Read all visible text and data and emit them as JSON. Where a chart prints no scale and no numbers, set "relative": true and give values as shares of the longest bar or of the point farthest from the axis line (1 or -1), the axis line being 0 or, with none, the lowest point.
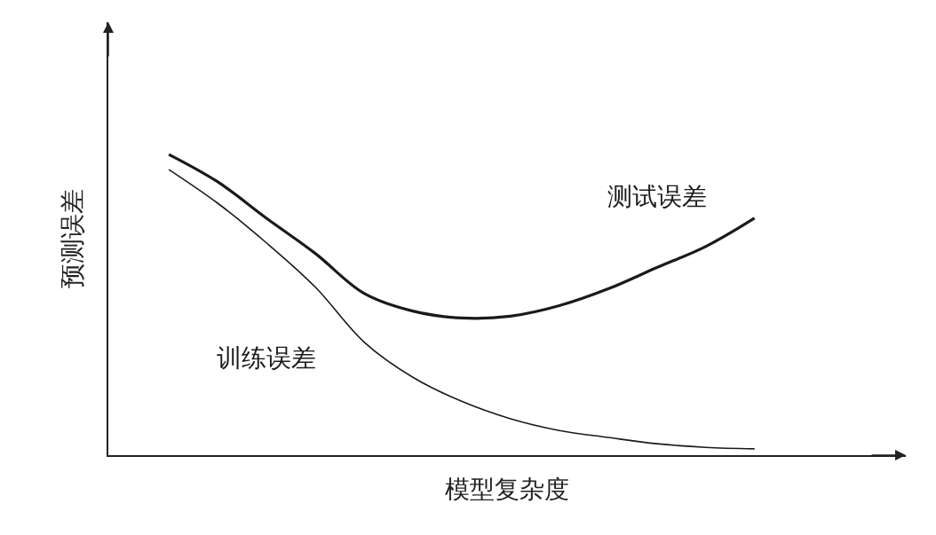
{
  "chart_data": {
    "type": "line",
    "relative": true,
    "xlabel": "模型复杂度",
    "ylabel": "预测误差",
    "categories": [
      null,
      null,
      null,
      null,
      null,
      null,
      null,
      null,
      null,
      null,
      null,
      null,
      null
    ],
    "legend": false,
    "grid": false,
    "marker": "none",
    "line_style": "solid",
    "series": [
      {
        "name": "测试误差",
        "color": "#1a1a1a",
        "values": [
          1,
          0.909,
          0.788,
          0.671,
          0.538,
          0.479,
          0.456,
          0.462,
          0.497,
          0.553,
          0.624,
          0.694,
          0.788
        ]
      },
      {
        "name": "训练误差",
        "color": "#1a1a1a",
        "values": [
          0.95,
          0.838,
          0.706,
          0.559,
          0.376,
          0.259,
          0.179,
          0.121,
          0.082,
          0.059,
          0.038,
          0.026,
          0.021
        ]
      }
    ]
  }
}
